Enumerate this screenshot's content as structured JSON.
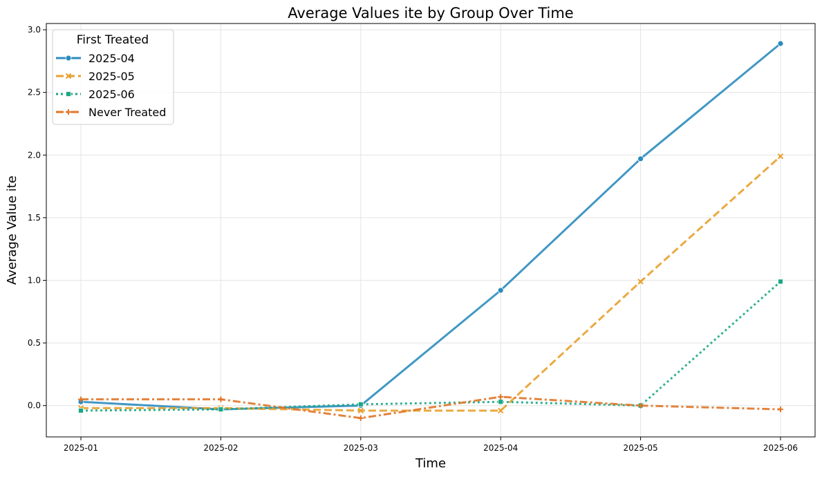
{
  "chart_data": {
    "type": "line",
    "title": "Average Values ite by Group Over Time",
    "xlabel": "Time",
    "ylabel": "Average Value ite",
    "categories": [
      "2025-01",
      "2025-02",
      "2025-03",
      "2025-04",
      "2025-05",
      "2025-06"
    ],
    "ylim": [
      -0.25,
      3.05
    ],
    "yticks": [
      0.0,
      0.5,
      1.0,
      1.5,
      2.0,
      2.5,
      3.0
    ],
    "ytick_labels": [
      "0.0",
      "0.5",
      "1.0",
      "1.5",
      "2.0",
      "2.5",
      "3.0"
    ],
    "grid": true,
    "legend": {
      "title": "First Treated",
      "placement": "top-left"
    },
    "series": [
      {
        "name": "2025-04",
        "values": [
          0.03,
          -0.03,
          0.0,
          0.92,
          1.97,
          2.89
        ],
        "color": "#2b8cbe",
        "dash": "solid",
        "marker": "circle"
      },
      {
        "name": "2025-05",
        "values": [
          -0.02,
          -0.02,
          -0.04,
          -0.04,
          0.99,
          1.99
        ],
        "color": "#e8a02c",
        "dash": "dashed",
        "marker": "x"
      },
      {
        "name": "2025-06",
        "values": [
          -0.04,
          -0.03,
          0.01,
          0.03,
          0.0,
          0.99
        ],
        "color": "#1aa784",
        "dash": "dotted",
        "marker": "square"
      },
      {
        "name": "Never Treated",
        "values": [
          0.05,
          0.05,
          -0.1,
          0.07,
          0.0,
          -0.03
        ],
        "color": "#e07628",
        "dash": "dashdot",
        "marker": "plus"
      }
    ]
  }
}
